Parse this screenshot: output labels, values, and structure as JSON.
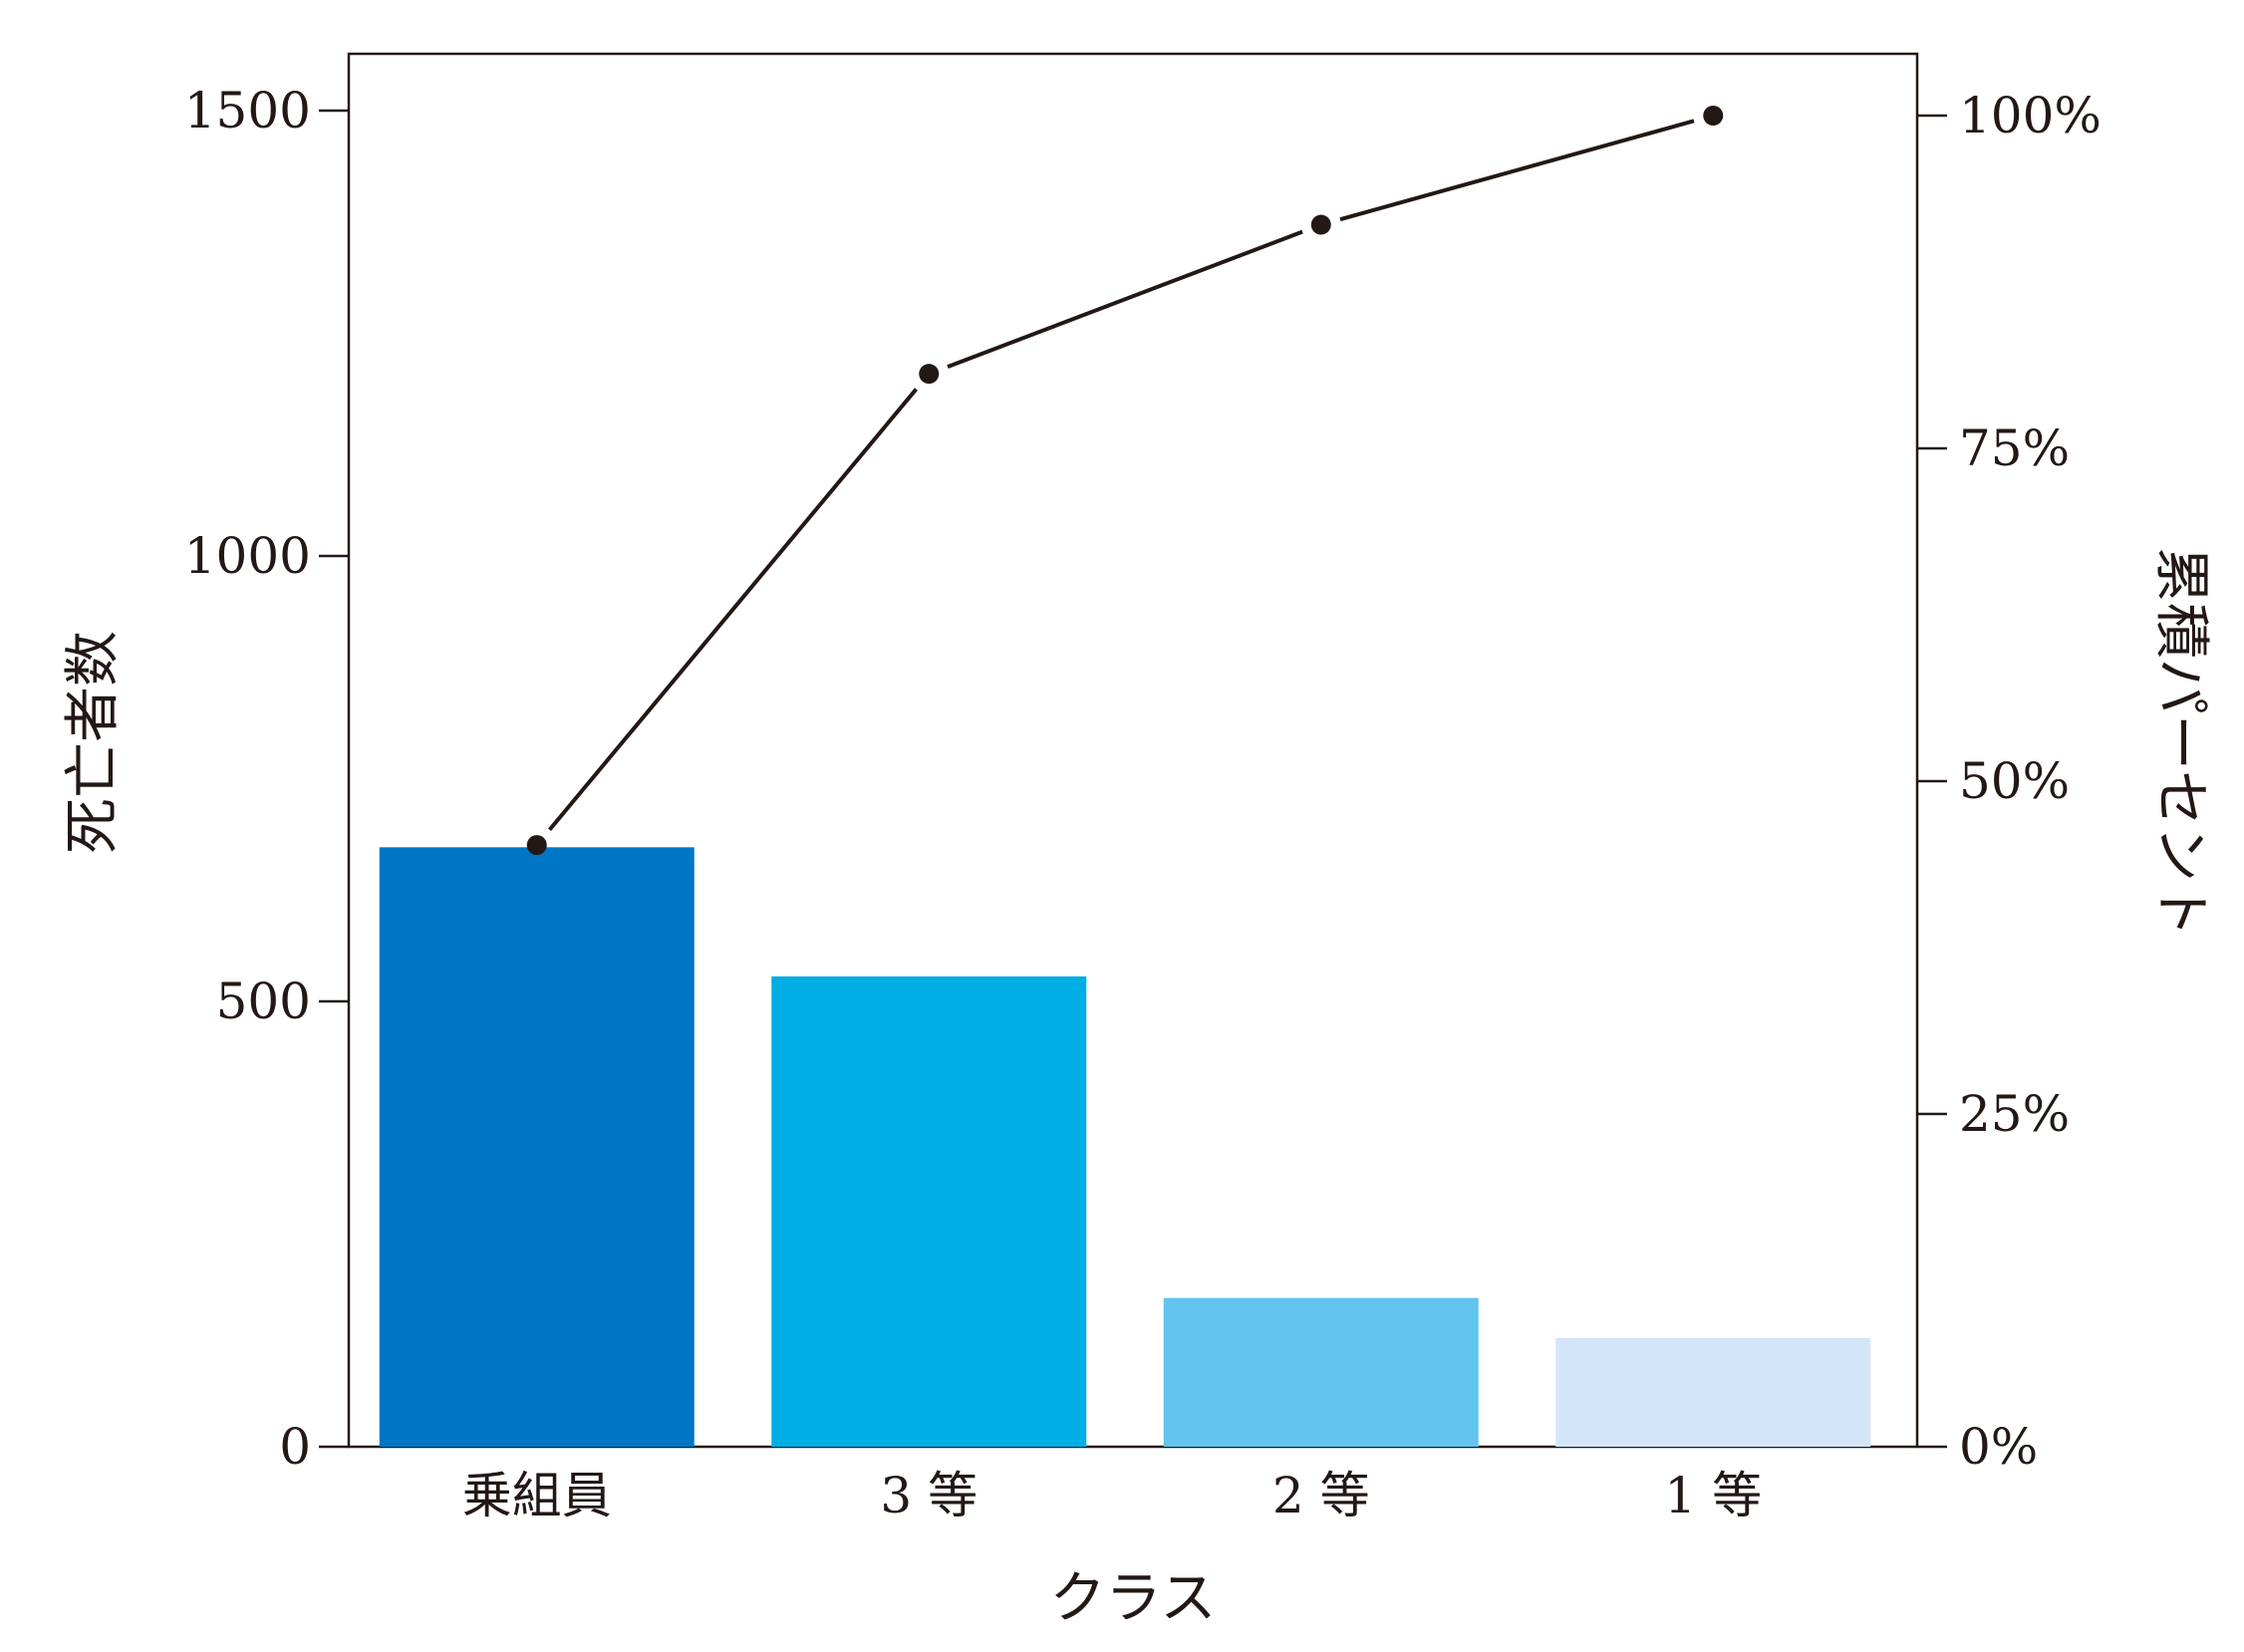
{
  "chart_data": {
    "type": "bar",
    "chart_kind": "pareto",
    "xlabel": "クラス",
    "ylabel": "死亡者数",
    "y2label": "累積パーセント",
    "categories": [
      "乗組員",
      "3 等",
      "2 等",
      "1 等"
    ],
    "values": [
      673,
      528,
      167,
      122
    ],
    "cumulative_percent": [
      45.2,
      80.6,
      91.8,
      100
    ],
    "ylim": [
      0,
      1600
    ],
    "y2lim": [
      0,
      108.3
    ],
    "yticks": [
      "0",
      "500",
      "1000",
      "1500"
    ],
    "y2ticks": [
      "0%",
      "25%",
      "50%",
      "75%",
      "100%"
    ],
    "grid": false,
    "colors": {
      "bars": [
        "#0077c6",
        "#00aee6",
        "#62c4ef",
        "#d3e6f7"
      ],
      "line": "#231815",
      "axis": "#231815"
    }
  }
}
